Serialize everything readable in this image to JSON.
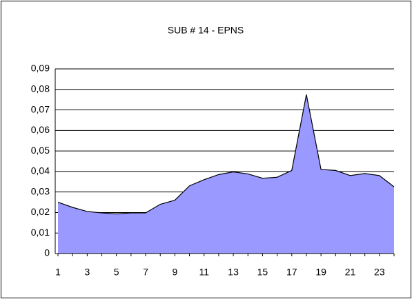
{
  "chart_data": {
    "type": "area",
    "title": "SUB # 14 - EPNS",
    "categories": [
      1,
      null,
      3,
      null,
      5,
      null,
      7,
      null,
      9,
      null,
      11,
      null,
      13,
      null,
      15,
      null,
      17,
      null,
      19,
      null,
      21,
      null,
      23,
      null
    ],
    "series": [
      {
        "color": "#9999ff",
        "values": [
          0.025,
          0.0225,
          0.0205,
          0.0198,
          0.0193,
          0.0198,
          0.0198,
          0.024,
          0.026,
          0.033,
          0.036,
          0.0385,
          0.0398,
          0.0388,
          0.0367,
          0.0372,
          0.0405,
          0.0775,
          0.041,
          0.0405,
          0.038,
          0.039,
          0.038,
          0.0325
        ]
      }
    ],
    "ylim": [
      0,
      0.09
    ],
    "yticks": [
      0,
      {
        "value": 0.01,
        "label": "0,01"
      },
      {
        "value": 0.02,
        "label": "0,02"
      },
      {
        "value": 0.03,
        "label": "0,03"
      },
      {
        "value": 0.04,
        "label": "0,04"
      },
      {
        "value": 0.05,
        "label": "0,05"
      },
      {
        "value": 0.06,
        "label": "0,06"
      },
      {
        "value": 0.07,
        "label": "0,07"
      },
      {
        "value": 0.08,
        "label": "0,08"
      },
      {
        "value": 0.09,
        "label": "0,09"
      }
    ],
    "grid": true
  }
}
